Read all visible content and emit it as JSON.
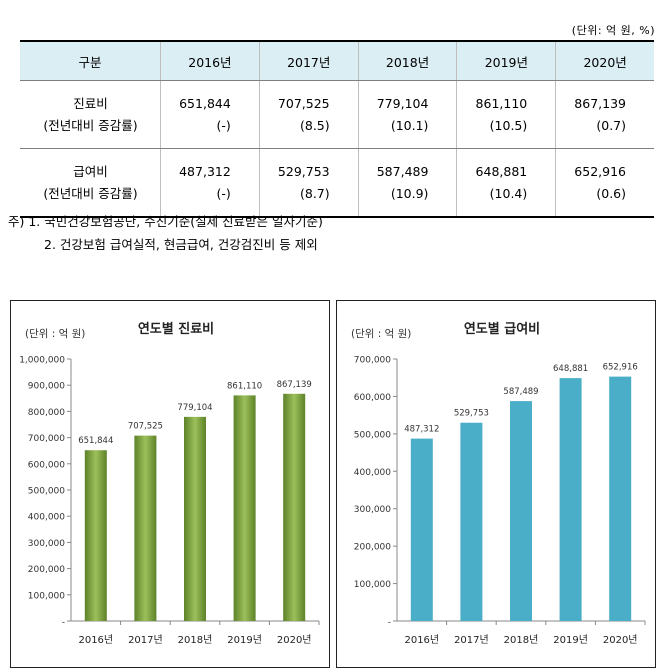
{
  "unit_note": "(단위: 억 원, %)",
  "table": {
    "headers": [
      "구분",
      "2016년",
      "2017년",
      "2018년",
      "2019년",
      "2020년"
    ],
    "rows": [
      {
        "label": "진료비",
        "sublabel": "(전년대비 증감률)",
        "values": [
          "651,844",
          "707,525",
          "779,104",
          "861,110",
          "867,139"
        ],
        "rates": [
          "(-)",
          "(8.5)",
          "(10.1)",
          "(10.5)",
          "(0.7)"
        ]
      },
      {
        "label": "급여비",
        "sublabel": "(전년대비 증감률)",
        "values": [
          "487,312",
          "529,753",
          "587,489",
          "648,881",
          "652,916"
        ],
        "rates": [
          "(-)",
          "(8.7)",
          "(10.9)",
          "(10.4)",
          "(0.6)"
        ]
      }
    ]
  },
  "notes": [
    "주) 1. 국민건강보험공단, 수진기준(실제 진료받은 일자기준)",
    "2. 건강보험 급여실적, 현금급여, 건강검진비 등 제외"
  ],
  "chart_data": [
    {
      "type": "bar",
      "title": "연도별 진료비",
      "unit": "(단위 : 억 원)",
      "categories": [
        "2016년",
        "2017년",
        "2018년",
        "2019년",
        "2020년"
      ],
      "values": [
        651844,
        707525,
        779104,
        861110,
        867139
      ],
      "data_labels": [
        "651,844",
        "707,525",
        "779,104",
        "861,110",
        "867,139"
      ],
      "ylim": [
        0,
        1000000
      ],
      "yticks": [
        0,
        100000,
        200000,
        300000,
        400000,
        500000,
        600000,
        700000,
        800000,
        900000,
        1000000
      ],
      "ytick_labels": [
        "-",
        "100,000",
        "200,000",
        "300,000",
        "400,000",
        "500,000",
        "600,000",
        "700,000",
        "800,000",
        "900,000",
        "1,000,000"
      ],
      "color": "#7aa23c",
      "color_light": "#9cc05a",
      "color_dark": "#5d8229",
      "grid": false
    },
    {
      "type": "bar",
      "title": "연도별 급여비",
      "unit": "(단위 : 억 원)",
      "categories": [
        "2016년",
        "2017년",
        "2018년",
        "2019년",
        "2020년"
      ],
      "values": [
        487312,
        529753,
        587489,
        648881,
        652916
      ],
      "data_labels": [
        "487,312",
        "529,753",
        "587,489",
        "648,881",
        "652,916"
      ],
      "ylim": [
        0,
        700000
      ],
      "yticks": [
        0,
        100000,
        200000,
        300000,
        400000,
        500000,
        600000,
        700000
      ],
      "ytick_labels": [
        "-",
        "100,000",
        "200,000",
        "300,000",
        "400,000",
        "500,000",
        "600,000",
        "700,000"
      ],
      "color": "#4aaec8",
      "color_light": "#4aaec8",
      "color_dark": "#4aaec8",
      "grid": false
    }
  ]
}
